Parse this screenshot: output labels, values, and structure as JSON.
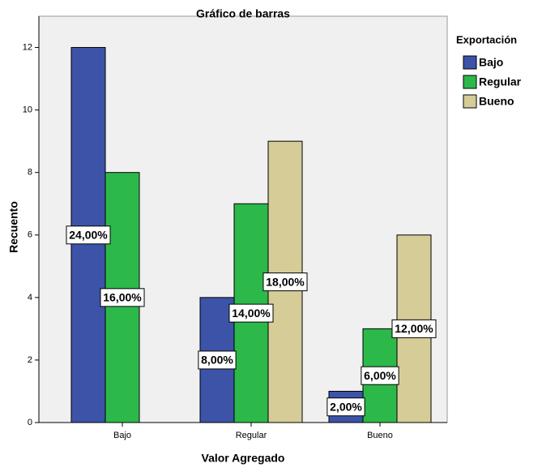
{
  "chart_data": {
    "type": "bar",
    "title": "Gráfico de barras",
    "x_label": "Valor Agregado",
    "y_label": "Recuento",
    "categories": [
      "Bajo",
      "Regular",
      "Bueno"
    ],
    "legend_title": "Exportación",
    "series": [
      {
        "name": "Bajo",
        "color": "#3d53a8",
        "values": [
          12,
          4,
          1
        ],
        "percent_labels": [
          "24,00%",
          "8,00%",
          "2,00%"
        ]
      },
      {
        "name": "Regular",
        "color": "#2db84a",
        "values": [
          8,
          7,
          3
        ],
        "percent_labels": [
          "16,00%",
          "14,00%",
          "6,00%"
        ]
      },
      {
        "name": "Bueno",
        "color": "#d6cc97",
        "values": [
          null,
          9,
          6
        ],
        "percent_labels": [
          null,
          "18,00%",
          "12,00%"
        ]
      }
    ],
    "ylim": [
      0,
      13
    ],
    "yticks": [
      0,
      2,
      4,
      6,
      8,
      10,
      12
    ],
    "grid": false
  }
}
